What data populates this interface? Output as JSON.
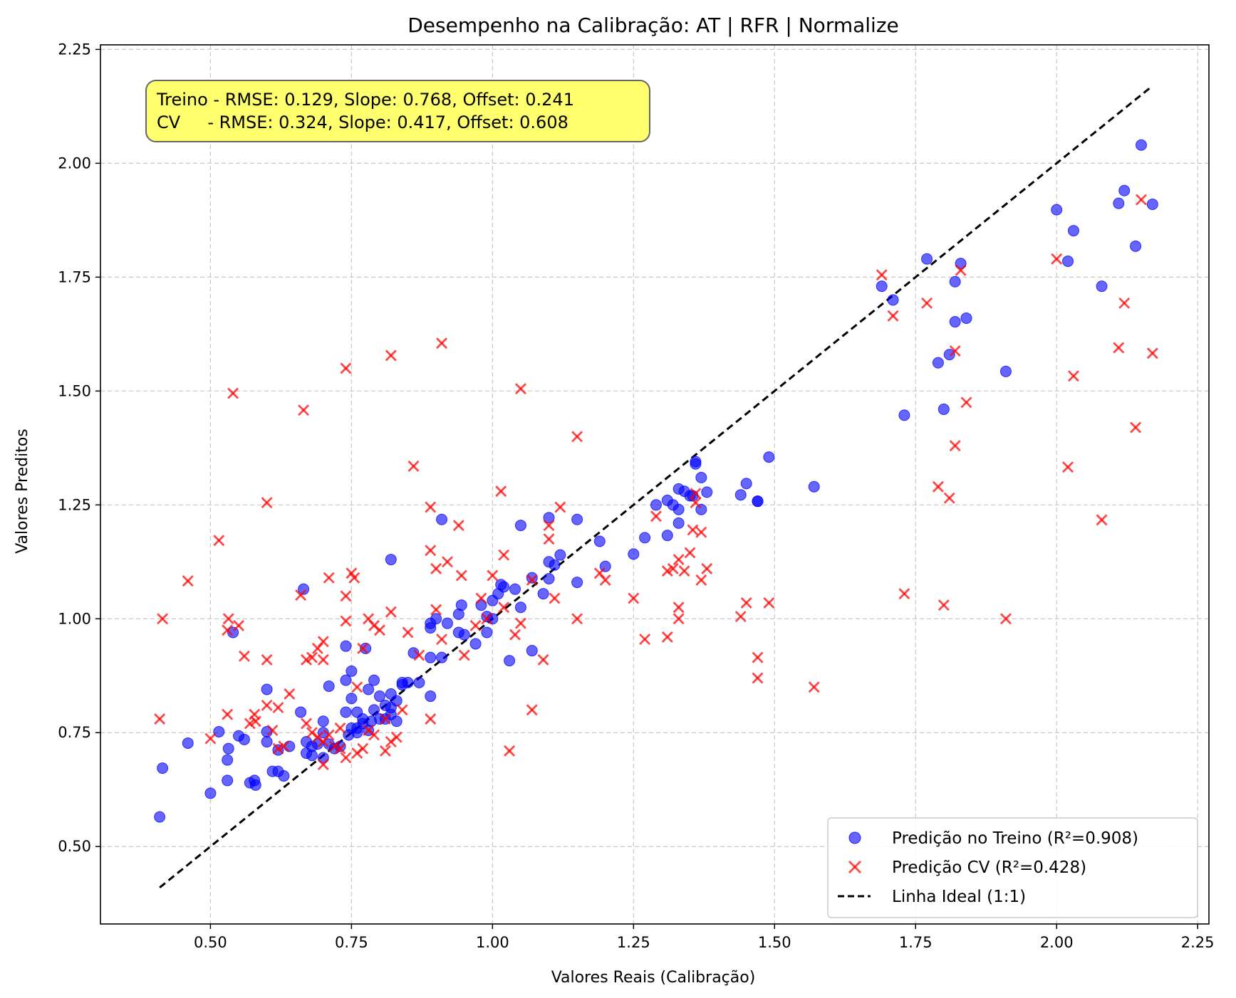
{
  "chart_data": {
    "type": "scatter",
    "title": "Desempenho na Calibração: AT | RFR | Normalize",
    "xlabel": "Valores Reais (Calibração)",
    "ylabel": "Valores Preditos",
    "xlim": [
      0.305,
      2.27
    ],
    "ylim": [
      0.33,
      2.26
    ],
    "xticks": [
      "0.50",
      "0.75",
      "1.00",
      "1.25",
      "1.50",
      "1.75",
      "2.00",
      "2.25"
    ],
    "yticks": [
      "0.50",
      "0.75",
      "1.00",
      "1.25",
      "1.50",
      "1.75",
      "2.00",
      "2.25"
    ],
    "xtick_values": [
      0.5,
      0.75,
      1.0,
      1.25,
      1.5,
      1.75,
      2.0,
      2.25
    ],
    "ytick_values": [
      0.5,
      0.75,
      1.0,
      1.25,
      1.5,
      1.75,
      2.0,
      2.25
    ],
    "grid": true,
    "legend_position": "lower-right",
    "annotation": {
      "line1": "Treino - RMSE: 0.129, Slope: 0.768, Offset: 0.241",
      "line2": "CV     - RMSE: 0.324, Slope: 0.417, Offset: 0.608",
      "background": "#ffff66"
    },
    "ideal_line": {
      "name": "Linha Ideal (1:1)",
      "x": [
        0.41,
        2.17
      ],
      "y": [
        0.41,
        2.17
      ],
      "color": "#000000"
    },
    "series": [
      {
        "name": "Predição no Treino (R²=0.908)",
        "marker": "circle",
        "color": "#0000ff",
        "points": [
          [
            0.41,
            0.565
          ],
          [
            0.415,
            0.672
          ],
          [
            0.46,
            0.727
          ],
          [
            0.5,
            0.617
          ],
          [
            0.515,
            0.752
          ],
          [
            0.53,
            0.645
          ],
          [
            0.53,
            0.69
          ],
          [
            0.532,
            0.715
          ],
          [
            0.54,
            0.97
          ],
          [
            0.55,
            0.743
          ],
          [
            0.56,
            0.735
          ],
          [
            0.57,
            0.64
          ],
          [
            0.578,
            0.645
          ],
          [
            0.58,
            0.635
          ],
          [
            0.6,
            0.73
          ],
          [
            0.6,
            0.752
          ],
          [
            0.6,
            0.845
          ],
          [
            0.61,
            0.665
          ],
          [
            0.62,
            0.665
          ],
          [
            0.62,
            0.712
          ],
          [
            0.63,
            0.655
          ],
          [
            0.64,
            0.72
          ],
          [
            0.66,
            0.795
          ],
          [
            0.665,
            1.065
          ],
          [
            0.67,
            0.705
          ],
          [
            0.67,
            0.73
          ],
          [
            0.68,
            0.72
          ],
          [
            0.68,
            0.7
          ],
          [
            0.69,
            0.725
          ],
          [
            0.7,
            0.695
          ],
          [
            0.7,
            0.75
          ],
          [
            0.7,
            0.775
          ],
          [
            0.71,
            0.725
          ],
          [
            0.71,
            0.852
          ],
          [
            0.72,
            0.715
          ],
          [
            0.73,
            0.72
          ],
          [
            0.74,
            0.795
          ],
          [
            0.74,
            0.865
          ],
          [
            0.74,
            0.94
          ],
          [
            0.745,
            0.745
          ],
          [
            0.75,
            0.76
          ],
          [
            0.75,
            0.825
          ],
          [
            0.75,
            0.885
          ],
          [
            0.76,
            0.75
          ],
          [
            0.76,
            0.76
          ],
          [
            0.76,
            0.795
          ],
          [
            0.77,
            0.77
          ],
          [
            0.77,
            0.78
          ],
          [
            0.775,
            0.935
          ],
          [
            0.78,
            0.755
          ],
          [
            0.78,
            0.845
          ],
          [
            0.785,
            0.775
          ],
          [
            0.79,
            0.8
          ],
          [
            0.79,
            0.865
          ],
          [
            0.8,
            0.78
          ],
          [
            0.8,
            0.83
          ],
          [
            0.81,
            0.78
          ],
          [
            0.81,
            0.81
          ],
          [
            0.82,
            0.79
          ],
          [
            0.82,
            0.805
          ],
          [
            0.82,
            0.835
          ],
          [
            0.82,
            1.13
          ],
          [
            0.83,
            0.775
          ],
          [
            0.83,
            0.82
          ],
          [
            0.84,
            0.855
          ],
          [
            0.84,
            0.86
          ],
          [
            0.85,
            0.86
          ],
          [
            0.86,
            0.925
          ],
          [
            0.87,
            0.86
          ],
          [
            0.89,
            0.83
          ],
          [
            0.89,
            0.915
          ],
          [
            0.89,
            0.98
          ],
          [
            0.89,
            0.99
          ],
          [
            0.9,
            1.0
          ],
          [
            0.91,
            0.915
          ],
          [
            0.91,
            1.218
          ],
          [
            0.92,
            0.99
          ],
          [
            0.94,
            0.97
          ],
          [
            0.94,
            1.01
          ],
          [
            0.945,
            1.03
          ],
          [
            0.95,
            0.965
          ],
          [
            0.97,
            0.945
          ],
          [
            0.98,
            1.03
          ],
          [
            0.99,
            0.97
          ],
          [
            0.99,
            1.005
          ],
          [
            1.0,
            1.04
          ],
          [
            1.0,
            1.0
          ],
          [
            1.01,
            1.055
          ],
          [
            1.015,
            1.075
          ],
          [
            1.02,
            1.07
          ],
          [
            1.03,
            0.908
          ],
          [
            1.04,
            1.065
          ],
          [
            1.05,
            1.025
          ],
          [
            1.05,
            1.205
          ],
          [
            1.07,
            0.93
          ],
          [
            1.07,
            1.09
          ],
          [
            1.09,
            1.055
          ],
          [
            1.1,
            1.088
          ],
          [
            1.1,
            1.125
          ],
          [
            1.1,
            1.222
          ],
          [
            1.11,
            1.118
          ],
          [
            1.12,
            1.14
          ],
          [
            1.15,
            1.08
          ],
          [
            1.15,
            1.218
          ],
          [
            1.19,
            1.17
          ],
          [
            1.2,
            1.115
          ],
          [
            1.25,
            1.142
          ],
          [
            1.27,
            1.178
          ],
          [
            1.29,
            1.25
          ],
          [
            1.31,
            1.183
          ],
          [
            1.31,
            1.26
          ],
          [
            1.32,
            1.25
          ],
          [
            1.33,
            1.21
          ],
          [
            1.33,
            1.24
          ],
          [
            1.33,
            1.285
          ],
          [
            1.34,
            1.28
          ],
          [
            1.35,
            1.27
          ],
          [
            1.355,
            1.27
          ],
          [
            1.36,
            1.34
          ],
          [
            1.36,
            1.345
          ],
          [
            1.37,
            1.24
          ],
          [
            1.37,
            1.31
          ],
          [
            1.38,
            1.278
          ],
          [
            1.44,
            1.272
          ],
          [
            1.45,
            1.297
          ],
          [
            1.47,
            1.258
          ],
          [
            1.47,
            1.258
          ],
          [
            1.49,
            1.355
          ],
          [
            1.57,
            1.29
          ],
          [
            1.69,
            1.73
          ],
          [
            1.71,
            1.7
          ],
          [
            1.73,
            1.447
          ],
          [
            1.77,
            1.79
          ],
          [
            1.79,
            1.562
          ],
          [
            1.8,
            1.46
          ],
          [
            1.81,
            1.58
          ],
          [
            1.82,
            1.652
          ],
          [
            1.82,
            1.74
          ],
          [
            1.83,
            1.78
          ],
          [
            1.84,
            1.66
          ],
          [
            1.91,
            1.543
          ],
          [
            2.0,
            1.898
          ],
          [
            2.02,
            1.785
          ],
          [
            2.03,
            1.852
          ],
          [
            2.08,
            1.73
          ],
          [
            2.11,
            1.912
          ],
          [
            2.12,
            1.94
          ],
          [
            2.14,
            1.818
          ],
          [
            2.15,
            2.04
          ],
          [
            2.17,
            1.91
          ]
        ]
      },
      {
        "name": "Predição CV (R²=0.428)",
        "marker": "x",
        "color": "#ff0000",
        "points": [
          [
            0.41,
            0.78
          ],
          [
            0.415,
            1.0
          ],
          [
            0.46,
            1.083
          ],
          [
            0.5,
            0.737
          ],
          [
            0.515,
            1.172
          ],
          [
            0.53,
            0.79
          ],
          [
            0.53,
            0.975
          ],
          [
            0.532,
            1.0
          ],
          [
            0.54,
            1.495
          ],
          [
            0.55,
            0.985
          ],
          [
            0.56,
            0.918
          ],
          [
            0.57,
            0.77
          ],
          [
            0.578,
            0.79
          ],
          [
            0.58,
            0.775
          ],
          [
            0.6,
            0.91
          ],
          [
            0.6,
            1.255
          ],
          [
            0.6,
            0.81
          ],
          [
            0.61,
            0.755
          ],
          [
            0.62,
            0.805
          ],
          [
            0.62,
            0.715
          ],
          [
            0.63,
            0.72
          ],
          [
            0.64,
            0.835
          ],
          [
            0.66,
            1.052
          ],
          [
            0.665,
            1.458
          ],
          [
            0.67,
            0.77
          ],
          [
            0.67,
            0.91
          ],
          [
            0.68,
            0.915
          ],
          [
            0.68,
            0.75
          ],
          [
            0.69,
            0.74
          ],
          [
            0.69,
            0.935
          ],
          [
            0.7,
            0.68
          ],
          [
            0.7,
            0.73
          ],
          [
            0.7,
            0.91
          ],
          [
            0.7,
            0.95
          ],
          [
            0.71,
            0.745
          ],
          [
            0.71,
            1.09
          ],
          [
            0.72,
            0.72
          ],
          [
            0.73,
            0.715
          ],
          [
            0.73,
            0.76
          ],
          [
            0.74,
            0.695
          ],
          [
            0.74,
            0.995
          ],
          [
            0.74,
            1.05
          ],
          [
            0.74,
            1.55
          ],
          [
            0.75,
            1.1
          ],
          [
            0.755,
            1.09
          ],
          [
            0.76,
            0.705
          ],
          [
            0.76,
            0.85
          ],
          [
            0.77,
            0.715
          ],
          [
            0.77,
            0.935
          ],
          [
            0.78,
            0.755
          ],
          [
            0.78,
            1.0
          ],
          [
            0.79,
            0.745
          ],
          [
            0.79,
            0.985
          ],
          [
            0.8,
            0.975
          ],
          [
            0.81,
            0.71
          ],
          [
            0.81,
            0.78
          ],
          [
            0.82,
            0.73
          ],
          [
            0.82,
            1.015
          ],
          [
            0.82,
            1.578
          ],
          [
            0.83,
            0.74
          ],
          [
            0.84,
            0.8
          ],
          [
            0.85,
            0.97
          ],
          [
            0.86,
            1.335
          ],
          [
            0.87,
            0.92
          ],
          [
            0.89,
            0.78
          ],
          [
            0.89,
            1.15
          ],
          [
            0.89,
            1.245
          ],
          [
            0.9,
            1.11
          ],
          [
            0.9,
            1.02
          ],
          [
            0.91,
            1.605
          ],
          [
            0.91,
            0.955
          ],
          [
            0.92,
            1.125
          ],
          [
            0.94,
            1.205
          ],
          [
            0.945,
            1.095
          ],
          [
            0.95,
            0.92
          ],
          [
            0.97,
            0.985
          ],
          [
            0.98,
            1.045
          ],
          [
            0.99,
            1.0
          ],
          [
            1.0,
            1.095
          ],
          [
            1.015,
            1.28
          ],
          [
            1.02,
            1.14
          ],
          [
            1.02,
            1.025
          ],
          [
            1.03,
            0.71
          ],
          [
            1.04,
            0.965
          ],
          [
            1.05,
            0.99
          ],
          [
            1.05,
            1.505
          ],
          [
            1.07,
            0.8
          ],
          [
            1.07,
            1.085
          ],
          [
            1.09,
            0.91
          ],
          [
            1.1,
            1.205
          ],
          [
            1.1,
            1.175
          ],
          [
            1.11,
            1.045
          ],
          [
            1.12,
            1.245
          ],
          [
            1.15,
            1.0
          ],
          [
            1.15,
            1.4
          ],
          [
            1.19,
            1.1
          ],
          [
            1.2,
            1.085
          ],
          [
            1.25,
            1.045
          ],
          [
            1.27,
            0.955
          ],
          [
            1.29,
            1.225
          ],
          [
            1.31,
            0.96
          ],
          [
            1.31,
            1.105
          ],
          [
            1.32,
            1.11
          ],
          [
            1.33,
            1.0
          ],
          [
            1.33,
            1.025
          ],
          [
            1.33,
            1.13
          ],
          [
            1.34,
            1.105
          ],
          [
            1.35,
            1.145
          ],
          [
            1.355,
            1.195
          ],
          [
            1.36,
            1.255
          ],
          [
            1.36,
            1.275
          ],
          [
            1.37,
            1.085
          ],
          [
            1.37,
            1.19
          ],
          [
            1.38,
            1.11
          ],
          [
            1.44,
            1.005
          ],
          [
            1.45,
            1.035
          ],
          [
            1.47,
            0.87
          ],
          [
            1.47,
            0.915
          ],
          [
            1.49,
            1.035
          ],
          [
            1.57,
            0.85
          ],
          [
            1.69,
            1.755
          ],
          [
            1.71,
            1.665
          ],
          [
            1.73,
            1.055
          ],
          [
            1.77,
            1.693
          ],
          [
            1.79,
            1.29
          ],
          [
            1.8,
            1.03
          ],
          [
            1.81,
            1.265
          ],
          [
            1.82,
            1.38
          ],
          [
            1.82,
            1.588
          ],
          [
            1.83,
            1.765
          ],
          [
            1.84,
            1.475
          ],
          [
            1.91,
            1.0
          ],
          [
            2.0,
            1.79
          ],
          [
            2.02,
            1.333
          ],
          [
            2.03,
            1.533
          ],
          [
            2.08,
            1.217
          ],
          [
            2.11,
            1.595
          ],
          [
            2.12,
            1.693
          ],
          [
            2.14,
            1.42
          ],
          [
            2.15,
            1.92
          ],
          [
            2.17,
            1.583
          ]
        ]
      }
    ]
  }
}
